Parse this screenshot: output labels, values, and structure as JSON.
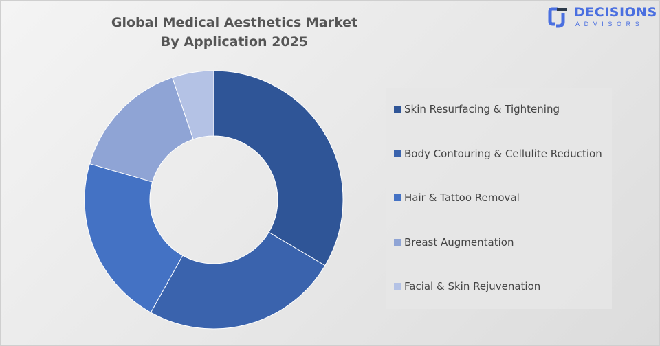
{
  "chart_data": {
    "type": "pie",
    "variant": "donut",
    "title": "Global Medical Aesthetics Market By Application 2025",
    "title_lines": [
      "Global Medical Aesthetics Market",
      "By Application 2025"
    ],
    "categories": [
      "Skin Resurfacing & Tightening",
      "Body Contouring & Cellulite Reduction",
      "Hair & Tattoo Removal",
      "Breast Augmentation",
      "Facial & Skin Rejuvenation"
    ],
    "values": [
      33.5,
      24.6,
      21.4,
      15.3,
      5.2
    ],
    "unit": "% share (estimated)",
    "colors": [
      "#2F5597",
      "#3A63AD",
      "#4472C4",
      "#8FA4D5",
      "#B4C2E5"
    ],
    "legend_position": "right",
    "data_labels": false
  },
  "brand": {
    "name": "DECISIONS",
    "tagline": "ADVISORS",
    "color": "#4A6FE0"
  }
}
